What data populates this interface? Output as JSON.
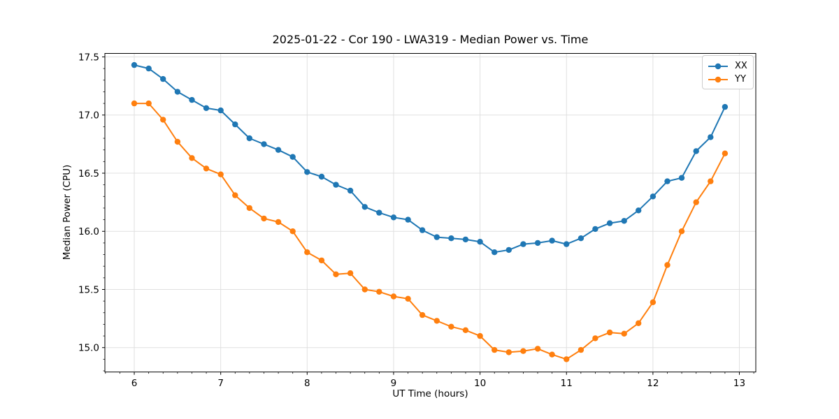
{
  "chart_data": {
    "type": "line",
    "title": "2025-01-22 - Cor 190 - LWA319 - Median Power vs. Time",
    "xlabel": "UT Time (hours)",
    "ylabel": "Median Power (CPU)",
    "xlim": [
      5.66,
      13.19
    ],
    "ylim": [
      14.79,
      17.53
    ],
    "xticks": [
      6,
      7,
      8,
      9,
      10,
      11,
      12,
      13
    ],
    "yticks": [
      15.0,
      15.5,
      16.0,
      16.5,
      17.0,
      17.5
    ],
    "x_minor_step": 0.1667,
    "y_minor_step": 0.1,
    "grid": "major",
    "grid_color": "#e0e0e0",
    "legend_position": "upper right",
    "x": [
      6.0,
      6.167,
      6.333,
      6.5,
      6.667,
      6.833,
      7.0,
      7.167,
      7.333,
      7.5,
      7.667,
      7.833,
      8.0,
      8.167,
      8.333,
      8.5,
      8.667,
      8.833,
      9.0,
      9.167,
      9.333,
      9.5,
      9.667,
      9.833,
      10.0,
      10.167,
      10.333,
      10.5,
      10.667,
      10.833,
      11.0,
      11.167,
      11.333,
      11.5,
      11.667,
      11.833,
      12.0,
      12.167,
      12.333,
      12.5,
      12.667,
      12.833
    ],
    "series": [
      {
        "name": "XX",
        "color": "#1f77b4",
        "values": [
          17.43,
          17.4,
          17.31,
          17.2,
          17.13,
          17.06,
          17.04,
          16.92,
          16.8,
          16.75,
          16.7,
          16.64,
          16.51,
          16.47,
          16.4,
          16.35,
          16.21,
          16.16,
          16.12,
          16.1,
          16.01,
          15.95,
          15.94,
          15.93,
          15.91,
          15.82,
          15.84,
          15.89,
          15.9,
          15.92,
          15.89,
          15.94,
          16.02,
          16.07,
          16.09,
          16.18,
          16.3,
          16.43,
          16.46,
          16.69,
          16.81,
          17.07
        ]
      },
      {
        "name": "YY",
        "color": "#ff7f0e",
        "values": [
          17.1,
          17.1,
          16.96,
          16.77,
          16.63,
          16.54,
          16.49,
          16.31,
          16.2,
          16.11,
          16.08,
          16.0,
          15.82,
          15.75,
          15.63,
          15.64,
          15.5,
          15.48,
          15.44,
          15.42,
          15.28,
          15.23,
          15.18,
          15.15,
          15.1,
          14.98,
          14.96,
          14.97,
          14.99,
          14.94,
          14.9,
          14.98,
          15.08,
          15.13,
          15.12,
          15.21,
          15.39,
          15.71,
          16.0,
          16.25,
          16.43,
          16.67
        ]
      }
    ]
  }
}
